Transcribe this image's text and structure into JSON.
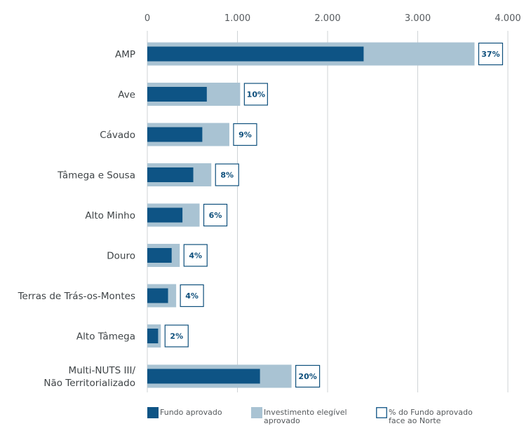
{
  "chart_data": {
    "type": "bar",
    "orientation": "horizontal",
    "categories": [
      "AMP",
      "Ave",
      "Cávado",
      "Tâmega e Sousa",
      "Alto Minho",
      "Douro",
      "Terras de Trás-os-Montes",
      "Alto Tâmega",
      "Multi-NUTS III/ Não Territorializado"
    ],
    "category_lines": [
      [
        "AMP"
      ],
      [
        "Ave"
      ],
      [
        "Cávado"
      ],
      [
        "Tâmega e Sousa"
      ],
      [
        "Alto Minho"
      ],
      [
        "Douro"
      ],
      [
        "Terras de Trás-os-Montes"
      ],
      [
        "Alto Tâmega"
      ],
      [
        "Multi-NUTS III/",
        "Não Territorializado"
      ]
    ],
    "series": [
      {
        "name": "Fundo aprovado",
        "values": [
          2400,
          660,
          610,
          510,
          390,
          270,
          230,
          120,
          1250
        ]
      },
      {
        "name": "Investimento elegível aprovado",
        "values": [
          3630,
          1030,
          910,
          710,
          580,
          360,
          320,
          150,
          1600
        ]
      }
    ],
    "share_labels": [
      "37%",
      "10%",
      "9%",
      "8%",
      "6%",
      "4%",
      "4%",
      "2%",
      "20%"
    ],
    "share_name": "% do Fundo aprovado face ao Norte",
    "xlim": [
      0,
      4000
    ],
    "xticks": [
      0,
      1000,
      2000,
      3000,
      4000
    ],
    "xtick_labels": [
      "0",
      "1.000",
      "2.000",
      "3.000",
      "4.000"
    ],
    "x_axis_position": "top",
    "grid": true,
    "legend": {
      "position": "bottom",
      "entries": [
        {
          "lines": [
            "Fundo aprovado"
          ],
          "color": "#0e5485",
          "style": "fill"
        },
        {
          "lines": [
            "Investimento elegível",
            "aprovado"
          ],
          "color": "#a9c3d3",
          "style": "fill"
        },
        {
          "lines": [
            "% do Fundo aprovado",
            "face ao Norte"
          ],
          "color": "#0e5485",
          "style": "outline"
        }
      ]
    },
    "colors": {
      "fundo": "#0e5485",
      "investimento": "#a9c3d3",
      "box_border": "#0e4f7c",
      "grid": "#cfd3d6"
    }
  }
}
